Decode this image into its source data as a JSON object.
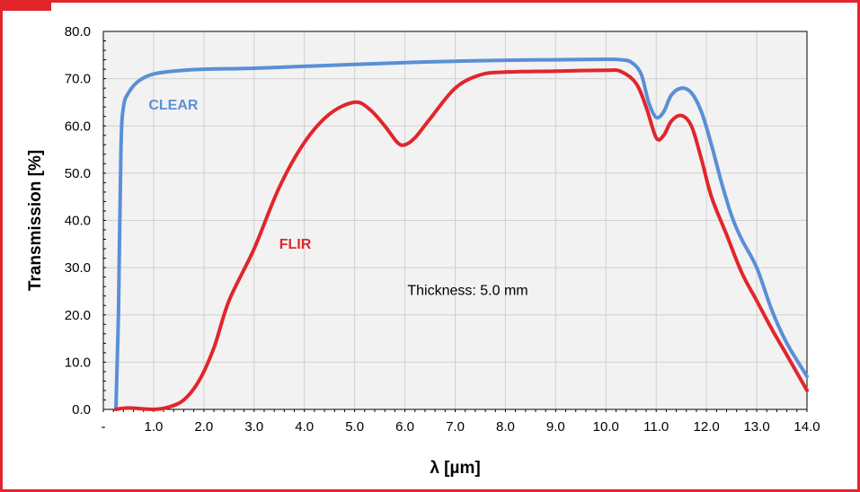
{
  "chart_data": {
    "type": "line",
    "xlabel": "λ [µm]",
    "ylabel": "Transmission [%]",
    "xlim": [
      0,
      14
    ],
    "ylim": [
      0,
      80
    ],
    "x_ticks": [
      "-",
      "1.0",
      "2.0",
      "3.0",
      "4.0",
      "5.0",
      "6.0",
      "7.0",
      "8.0",
      "9.0",
      "10.0",
      "11.0",
      "12.0",
      "13.0",
      "14.0"
    ],
    "y_ticks": [
      "0.0",
      "10.0",
      "20.0",
      "30.0",
      "40.0",
      "50.0",
      "60.0",
      "70.0",
      "80.0"
    ],
    "grid": true,
    "annotation": "Thickness: 5.0 mm",
    "series": [
      {
        "name": "CLEAR",
        "color": "#5a8fd6",
        "label_at": [
          0.9,
          63.5
        ],
        "points": [
          [
            0.25,
            0
          ],
          [
            0.3,
            20
          ],
          [
            0.35,
            55
          ],
          [
            0.4,
            64
          ],
          [
            0.5,
            67
          ],
          [
            0.7,
            69.5
          ],
          [
            1.0,
            71
          ],
          [
            1.5,
            71.7
          ],
          [
            2.0,
            72
          ],
          [
            3.0,
            72.2
          ],
          [
            4.0,
            72.6
          ],
          [
            5.0,
            73
          ],
          [
            6.0,
            73.4
          ],
          [
            7.0,
            73.7
          ],
          [
            8.0,
            73.9
          ],
          [
            9.0,
            74
          ],
          [
            10.0,
            74.1
          ],
          [
            10.3,
            74
          ],
          [
            10.5,
            73.5
          ],
          [
            10.7,
            71
          ],
          [
            10.85,
            65
          ],
          [
            11.0,
            61.8
          ],
          [
            11.15,
            63
          ],
          [
            11.3,
            66.5
          ],
          [
            11.5,
            68
          ],
          [
            11.7,
            67
          ],
          [
            11.9,
            63
          ],
          [
            12.1,
            56
          ],
          [
            12.3,
            48
          ],
          [
            12.5,
            41
          ],
          [
            12.7,
            36
          ],
          [
            13.0,
            30
          ],
          [
            13.3,
            21
          ],
          [
            13.6,
            14
          ],
          [
            14.0,
            7
          ]
        ]
      },
      {
        "name": "FLIR",
        "color": "#e1262b",
        "label_at": [
          3.5,
          34
        ],
        "points": [
          [
            0.25,
            0
          ],
          [
            0.5,
            0.3
          ],
          [
            1.0,
            0
          ],
          [
            1.3,
            0.5
          ],
          [
            1.6,
            2
          ],
          [
            1.9,
            6
          ],
          [
            2.2,
            13
          ],
          [
            2.5,
            23
          ],
          [
            3.0,
            34
          ],
          [
            3.5,
            47
          ],
          [
            4.0,
            56.5
          ],
          [
            4.5,
            62.5
          ],
          [
            5.0,
            65
          ],
          [
            5.3,
            63.5
          ],
          [
            5.6,
            60
          ],
          [
            5.85,
            56.5
          ],
          [
            6.0,
            56
          ],
          [
            6.2,
            57.5
          ],
          [
            6.5,
            61.5
          ],
          [
            7.0,
            68
          ],
          [
            7.5,
            70.8
          ],
          [
            8.0,
            71.4
          ],
          [
            9.0,
            71.6
          ],
          [
            10.0,
            71.8
          ],
          [
            10.3,
            71.5
          ],
          [
            10.6,
            69
          ],
          [
            10.8,
            64
          ],
          [
            11.0,
            57.5
          ],
          [
            11.15,
            58
          ],
          [
            11.3,
            61
          ],
          [
            11.5,
            62.2
          ],
          [
            11.7,
            60
          ],
          [
            11.9,
            53
          ],
          [
            12.1,
            45
          ],
          [
            12.4,
            37
          ],
          [
            12.7,
            29
          ],
          [
            13.0,
            23
          ],
          [
            13.3,
            17
          ],
          [
            13.6,
            11.5
          ],
          [
            14.0,
            4
          ]
        ]
      }
    ]
  }
}
